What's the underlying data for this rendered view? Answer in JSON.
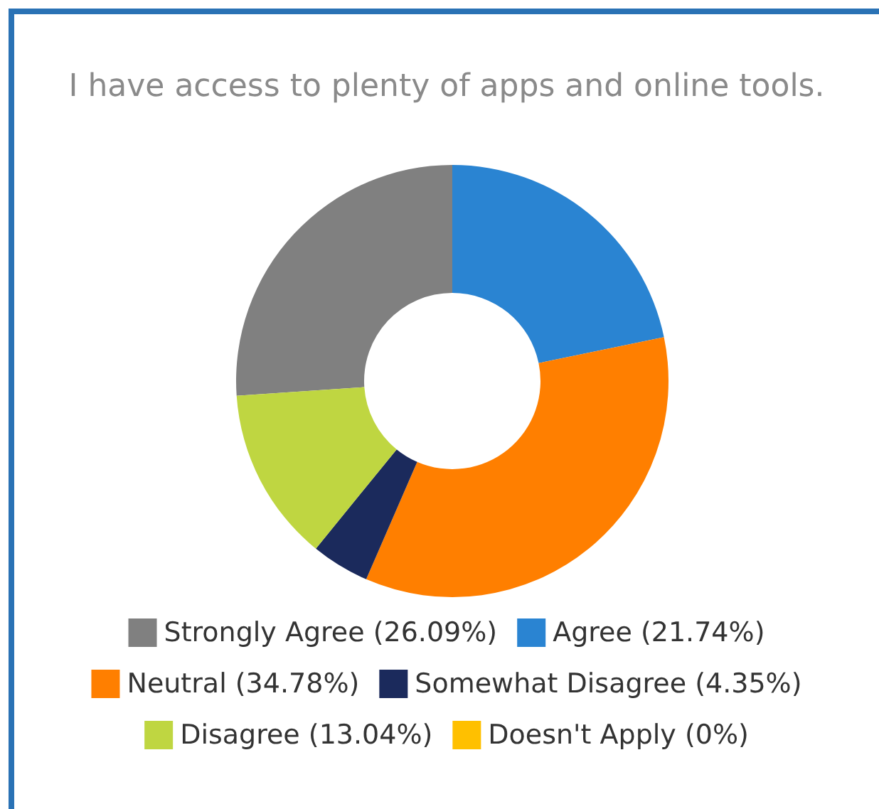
{
  "chart_data": {
    "type": "donut",
    "title": "I have access to plenty of apps and online tools.",
    "categories": [
      "Strongly Agree (26.09%)",
      "Agree (21.74%)",
      "Neutral (34.78%)",
      "Somewhat Disagree (4.35%)",
      "Disagree (13.04%)",
      "Doesn't Apply (0%)"
    ],
    "values": [
      26.09,
      21.74,
      34.78,
      4.35,
      13.04,
      0
    ],
    "colors": [
      "#808080",
      "#2a84d2",
      "#ff7f00",
      "#1b2a5c",
      "#bfd641",
      "#ffc000"
    ],
    "legend": "bottom"
  }
}
